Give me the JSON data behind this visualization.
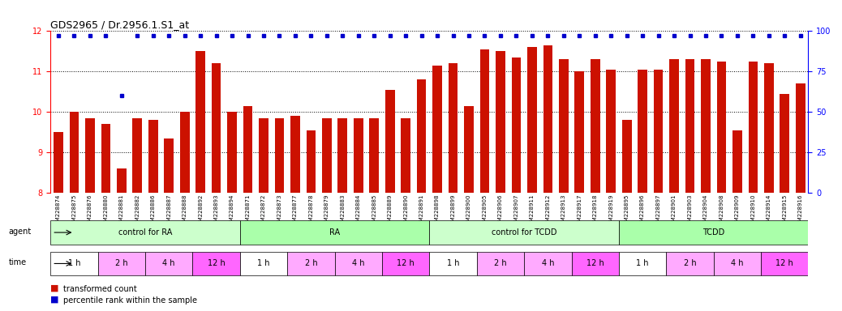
{
  "title": "GDS2965 / Dr.2956.1.S1_at",
  "samples": [
    "GSM228874",
    "GSM228875",
    "GSM228876",
    "GSM228880",
    "GSM228881",
    "GSM228882",
    "GSM228886",
    "GSM228887",
    "GSM228888",
    "GSM228892",
    "GSM228893",
    "GSM228894",
    "GSM228871",
    "GSM228872",
    "GSM228873",
    "GSM228877",
    "GSM228878",
    "GSM228879",
    "GSM228883",
    "GSM228884",
    "GSM228885",
    "GSM228889",
    "GSM228890",
    "GSM228891",
    "GSM228898",
    "GSM228899",
    "GSM228900",
    "GSM228905",
    "GSM228906",
    "GSM228907",
    "GSM228911",
    "GSM228912",
    "GSM228913",
    "GSM228917",
    "GSM228918",
    "GSM228919",
    "GSM228895",
    "GSM228896",
    "GSM228897",
    "GSM228901",
    "GSM228903",
    "GSM228904",
    "GSM228908",
    "GSM228909",
    "GSM228910",
    "GSM228914",
    "GSM228915",
    "GSM228916"
  ],
  "bar_values": [
    9.5,
    10.0,
    9.85,
    9.7,
    8.6,
    9.85,
    9.8,
    9.35,
    10.0,
    11.5,
    11.2,
    10.0,
    10.15,
    9.85,
    9.85,
    9.9,
    9.55,
    9.85,
    9.85,
    9.85,
    9.85,
    10.55,
    9.85,
    10.8,
    11.15,
    11.2,
    10.15,
    11.55,
    11.5,
    11.35,
    11.6,
    11.65,
    11.3,
    11.0,
    11.3,
    11.05,
    9.8,
    11.05,
    11.05,
    11.3,
    11.3,
    11.3,
    11.25,
    9.55,
    11.25,
    11.2,
    10.45,
    10.7
  ],
  "percentile_values": [
    97,
    97,
    97,
    97,
    60,
    97,
    97,
    97,
    97,
    97,
    97,
    97,
    97,
    97,
    97,
    97,
    97,
    97,
    97,
    97,
    97,
    97,
    97,
    97,
    97,
    97,
    97,
    97,
    97,
    97,
    97,
    97,
    97,
    97,
    97,
    97,
    97,
    97,
    97,
    97,
    97,
    97,
    97,
    97,
    97,
    97,
    97,
    97
  ],
  "ylim_left": [
    8,
    12
  ],
  "ylim_right": [
    0,
    100
  ],
  "yticks_left": [
    8,
    9,
    10,
    11,
    12
  ],
  "yticks_right": [
    0,
    25,
    50,
    75,
    100
  ],
  "agent_groups": [
    {
      "label": "control for RA",
      "start": 0,
      "end": 12,
      "color": "#ccffcc"
    },
    {
      "label": "RA",
      "start": 12,
      "end": 24,
      "color": "#aaffaa"
    },
    {
      "label": "control for TCDD",
      "start": 24,
      "end": 36,
      "color": "#ccffcc"
    },
    {
      "label": "TCDD",
      "start": 36,
      "end": 48,
      "color": "#aaffaa"
    }
  ],
  "time_groups": [
    {
      "label": "1 h",
      "color": "#ffffff"
    },
    {
      "label": "2 h",
      "color": "#ffaaff"
    },
    {
      "label": "4 h",
      "color": "#ffaaff"
    },
    {
      "label": "12 h",
      "color": "#ff66ff"
    },
    {
      "label": "1 h",
      "color": "#ffffff"
    },
    {
      "label": "2 h",
      "color": "#ffaaff"
    },
    {
      "label": "4 h",
      "color": "#ffaaff"
    },
    {
      "label": "12 h",
      "color": "#ff66ff"
    },
    {
      "label": "1 h",
      "color": "#ffffff"
    },
    {
      "label": "2 h",
      "color": "#ffaaff"
    },
    {
      "label": "4 h",
      "color": "#ffaaff"
    },
    {
      "label": "12 h",
      "color": "#ff66ff"
    },
    {
      "label": "1 h",
      "color": "#ffffff"
    },
    {
      "label": "2 h",
      "color": "#ffaaff"
    },
    {
      "label": "4 h",
      "color": "#ffaaff"
    },
    {
      "label": "12 h",
      "color": "#ff66ff"
    }
  ],
  "bar_color": "#cc1100",
  "dot_color": "#0000cc",
  "background_color": "#ffffff",
  "legend_items": [
    {
      "label": "transformed count",
      "color": "#cc1100",
      "marker": "s"
    },
    {
      "label": "percentile rank within the sample",
      "color": "#0000cc",
      "marker": "s"
    }
  ]
}
